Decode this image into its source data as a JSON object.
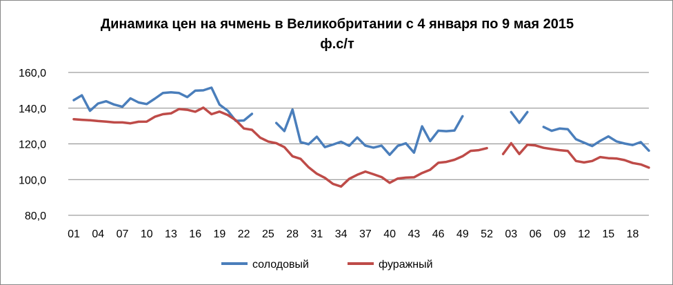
{
  "chart_data": {
    "type": "line",
    "title": "Динамика цен на ячмень в Великобритании с 4 января по 9 мая 2015",
    "subtitle": "ф.с/т",
    "ylim": [
      80,
      160
    ],
    "yticks": [
      "80,0",
      "100,0",
      "120,0",
      "140,0",
      "160,0"
    ],
    "ytick_values": [
      80,
      100,
      120,
      140,
      160
    ],
    "grid": true,
    "legend_position": "bottom",
    "x_tick_labels": [
      "01",
      "04",
      "07",
      "10",
      "13",
      "16",
      "19",
      "22",
      "25",
      "28",
      "31",
      "34",
      "37",
      "40",
      "43",
      "46",
      "49",
      "52",
      "03",
      "06",
      "09",
      "12",
      "15",
      "18"
    ],
    "series": [
      {
        "name": "солодовый",
        "color": "#4a7ebb",
        "values": [
          144.5,
          147.2,
          138.5,
          142.6,
          143.9,
          142.0,
          140.8,
          145.5,
          143.2,
          142.3,
          145.3,
          148.5,
          148.9,
          148.5,
          146.2,
          149.8,
          150.0,
          151.5,
          142.0,
          138.6,
          132.9,
          133.1,
          136.8,
          null,
          null,
          131.7,
          127.2,
          139.2,
          121.0,
          119.8,
          124.0,
          118.2,
          119.6,
          121.2,
          118.9,
          123.6,
          119.0,
          117.9,
          119.0,
          113.9,
          118.9,
          120.3,
          115.1,
          129.8,
          121.5,
          127.4,
          127.1,
          127.5,
          135.5,
          null,
          null,
          null,
          null,
          null,
          137.8,
          131.8,
          137.8,
          null,
          129.5,
          127.3,
          128.6,
          128.2,
          122.6,
          120.7,
          118.8,
          121.7,
          124.2,
          121.4,
          120.2,
          119.4,
          121.0,
          116.2
        ]
      },
      {
        "name": "фуражный",
        "color": "#be4b48",
        "values": [
          133.8,
          133.5,
          133.2,
          132.8,
          132.5,
          132.0,
          132.0,
          131.5,
          132.4,
          132.5,
          135.2,
          136.6,
          137.1,
          139.5,
          139.1,
          138.0,
          140.3,
          136.6,
          138.1,
          136.2,
          133.3,
          128.6,
          127.9,
          123.5,
          121.3,
          120.4,
          118.2,
          113.1,
          111.6,
          106.9,
          103.3,
          101.0,
          97.6,
          96.1,
          100.4,
          102.7,
          104.5,
          103.0,
          101.4,
          98.2,
          100.6,
          101.1,
          101.3,
          103.7,
          105.5,
          109.4,
          109.9,
          111.1,
          113.1,
          116.1,
          116.5,
          117.6,
          null,
          114.3,
          120.4,
          114.3,
          119.5,
          119.1,
          117.8,
          117.1,
          116.5,
          116.0,
          110.4,
          109.6,
          110.4,
          112.6,
          112.0,
          111.8,
          110.9,
          109.3,
          108.5,
          106.7
        ]
      }
    ]
  }
}
